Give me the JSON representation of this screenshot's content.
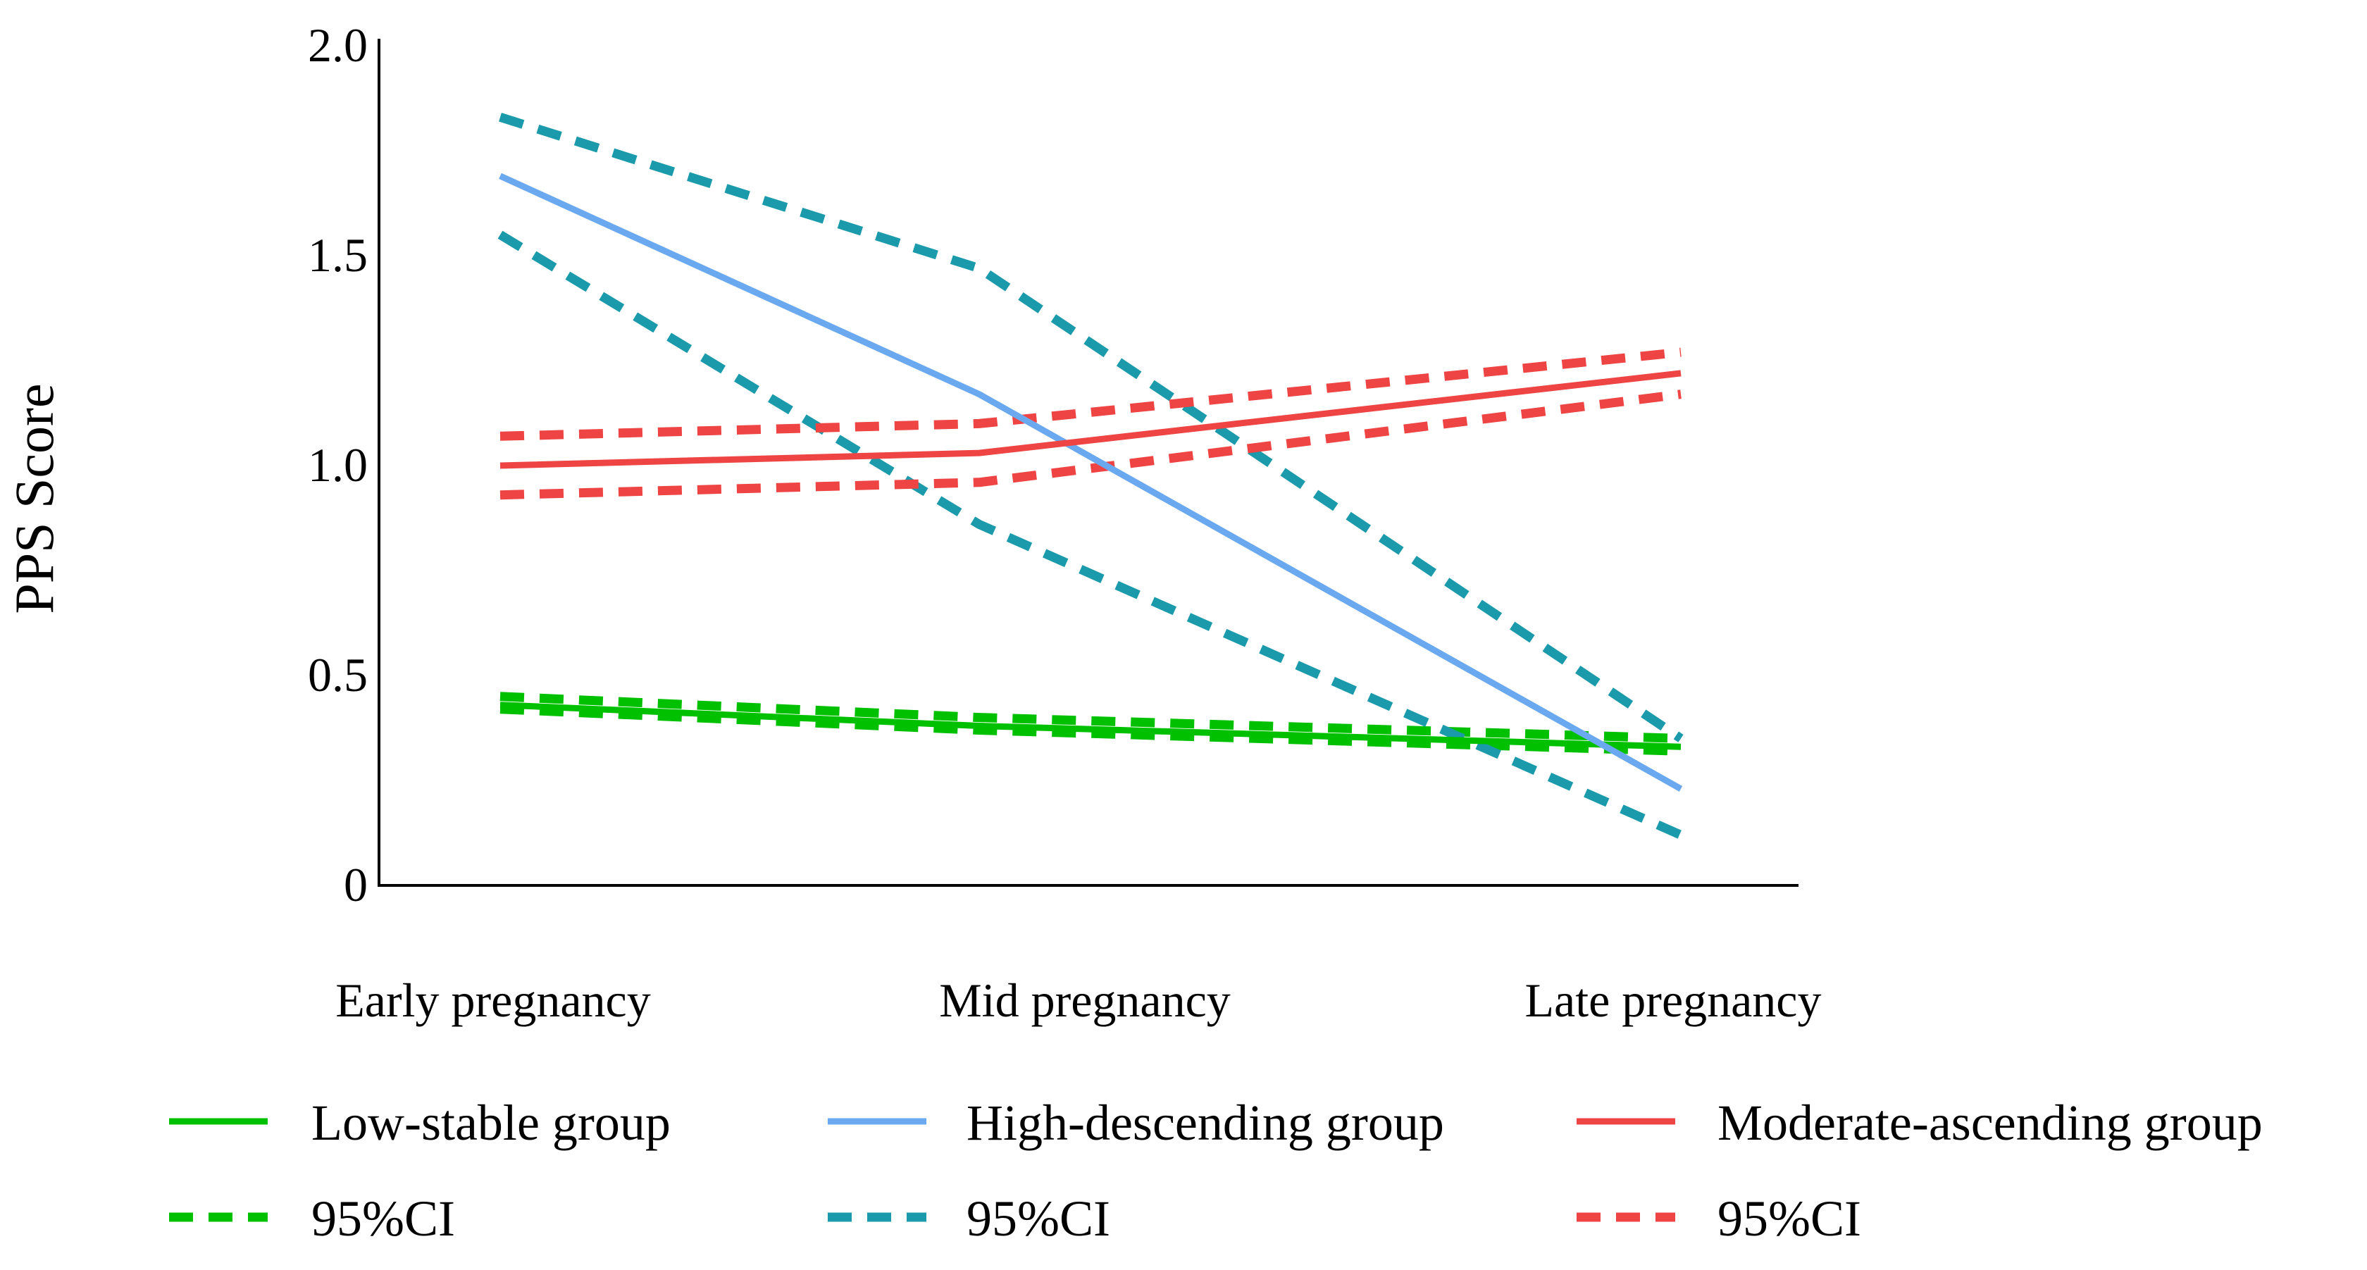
{
  "chart_data": {
    "type": "line",
    "title": "",
    "xlabel": "",
    "ylabel": "PPS Score",
    "categories": [
      "Early pregnancy",
      "Mid pregnancy",
      "Late pregnancy"
    ],
    "ylim": [
      0,
      2.0
    ],
    "yticks": [
      {
        "value": 0,
        "label": "0"
      },
      {
        "value": 0.5,
        "label": "0.5"
      },
      {
        "value": 1.0,
        "label": "1.0"
      },
      {
        "value": 1.5,
        "label": "1.5"
      },
      {
        "value": 2.0,
        "label": "2.0"
      }
    ],
    "grid": false,
    "legend_position": "bottom",
    "series": [
      {
        "name": "Low-stable group",
        "color": "#00c000",
        "style": "solid",
        "values": [
          0.43,
          0.38,
          0.33
        ]
      },
      {
        "name": "95%CI",
        "group": "Low-stable group",
        "color": "#00c000",
        "style": "dashed",
        "values": [
          0.45,
          0.4,
          0.35
        ]
      },
      {
        "name": "95%CI",
        "group": "Low-stable group",
        "color": "#00c000",
        "style": "dashed",
        "values": [
          0.42,
          0.37,
          0.32
        ]
      },
      {
        "name": "High-descending group",
        "color": "#6aa9ef",
        "style": "solid",
        "values": [
          1.69,
          1.17,
          0.23
        ]
      },
      {
        "name": "95%CI",
        "group": "High-descending group",
        "color": "#1a9aaa",
        "style": "dashed",
        "values": [
          1.83,
          1.47,
          0.35
        ]
      },
      {
        "name": "95%CI",
        "group": "High-descending group",
        "color": "#1a9aaa",
        "style": "dashed",
        "values": [
          1.55,
          0.86,
          0.12
        ]
      },
      {
        "name": "Moderate-ascending group",
        "color": "#ef4444",
        "style": "solid",
        "values": [
          1.0,
          1.03,
          1.22
        ]
      },
      {
        "name": "95%CI",
        "group": "Moderate-ascending group",
        "color": "#ef4444",
        "style": "dashed",
        "values": [
          1.07,
          1.1,
          1.27
        ]
      },
      {
        "name": "95%CI",
        "group": "Moderate-ascending group",
        "color": "#ef4444",
        "style": "dashed",
        "values": [
          0.93,
          0.96,
          1.17
        ]
      }
    ],
    "legend": [
      {
        "label": "Low-stable group",
        "color": "#00c000",
        "style": "solid"
      },
      {
        "label": "High-descending group",
        "color": "#6aa9ef",
        "style": "solid"
      },
      {
        "label": "Moderate-ascending group",
        "color": "#ef4444",
        "style": "solid"
      },
      {
        "label": "95%CI",
        "color": "#00c000",
        "style": "dashed"
      },
      {
        "label": "95%CI",
        "color": "#1a9aaa",
        "style": "dashed"
      },
      {
        "label": "95%CI",
        "color": "#ef4444",
        "style": "dashed"
      }
    ]
  }
}
